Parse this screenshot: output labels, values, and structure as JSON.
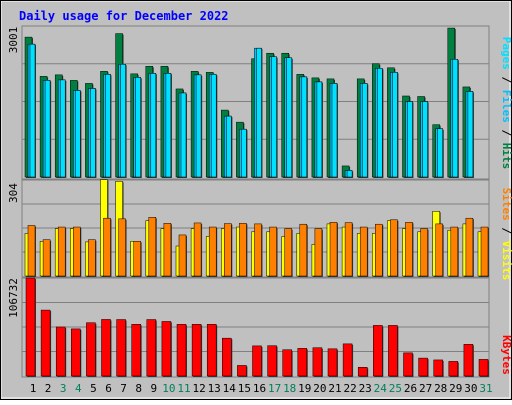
{
  "title": "Daily usage for December 2022",
  "colors": {
    "title": "#0000ff",
    "frame": "#c0c0c0",
    "plot_bg": "#c0c0c0",
    "hits": "#008040",
    "files": "#00c0ff",
    "pages": "#00e0ff",
    "visits": "#ffff00",
    "sites": "#ff8000",
    "kbytes": "#ff0000",
    "weekend_day": "#00805c",
    "weekday_day": "#000000"
  },
  "chart_data": [
    {
      "type": "bar",
      "name": "hits-files-pages",
      "ymax_label": "3001",
      "ylim": [
        0,
        3001
      ],
      "legend": [
        "Pages",
        "Files",
        "Hits"
      ],
      "x": [
        1,
        2,
        3,
        4,
        5,
        6,
        7,
        8,
        9,
        10,
        11,
        12,
        13,
        14,
        15,
        16,
        17,
        18,
        19,
        20,
        21,
        22,
        23,
        24,
        25,
        26,
        27,
        28,
        29,
        30,
        31
      ],
      "series": [
        {
          "name": "Hits",
          "values": [
            2780,
            2000,
            2030,
            1920,
            1860,
            2100,
            2850,
            2050,
            2200,
            2200,
            1750,
            2100,
            2080,
            1330,
            1090,
            2350,
            2460,
            2460,
            2040,
            1970,
            1950,
            220,
            1950,
            2250,
            2170,
            1610,
            1600,
            1040,
            2960,
            1790,
            null
          ]
        },
        {
          "name": "Files",
          "values": [
            2640,
            1920,
            1930,
            1720,
            1760,
            2040,
            2240,
            1980,
            2060,
            2060,
            1670,
            2030,
            2040,
            1210,
            950,
            2560,
            2390,
            2370,
            1990,
            1890,
            1860,
            130,
            1860,
            2160,
            2080,
            1500,
            1500,
            960,
            2340,
            1700,
            null
          ]
        },
        {
          "name": "Pages",
          "values": [
            2640,
            1920,
            1930,
            1720,
            1760,
            2040,
            2240,
            1980,
            2060,
            2060,
            1670,
            2030,
            2040,
            1210,
            950,
            2560,
            2390,
            2370,
            1990,
            1890,
            1860,
            130,
            1860,
            2160,
            2080,
            1500,
            1500,
            960,
            2340,
            1700,
            null
          ]
        }
      ]
    },
    {
      "type": "bar",
      "name": "visits-sites",
      "ymax_label": "304",
      "ylim": [
        0,
        304
      ],
      "legend": [
        "Sites",
        "Visits"
      ],
      "x": [
        1,
        2,
        3,
        4,
        5,
        6,
        7,
        8,
        9,
        10,
        11,
        12,
        13,
        14,
        15,
        16,
        17,
        18,
        19,
        20,
        21,
        22,
        23,
        24,
        25,
        26,
        27,
        28,
        29,
        30,
        31
      ],
      "series": [
        {
          "name": "Visits",
          "values": [
            135,
            110,
            150,
            150,
            108,
            305,
            300,
            110,
            175,
            150,
            95,
            150,
            125,
            150,
            155,
            140,
            140,
            125,
            135,
            100,
            165,
            155,
            135,
            135,
            175,
            150,
            140,
            205,
            145,
            165,
            140
          ]
        },
        {
          "name": "Sites",
          "values": [
            160,
            115,
            155,
            155,
            115,
            183,
            181,
            110,
            186,
            167,
            130,
            168,
            155,
            166,
            167,
            165,
            155,
            150,
            164,
            150,
            170,
            169,
            155,
            164,
            178,
            170,
            150,
            165,
            155,
            183,
            155
          ]
        }
      ]
    },
    {
      "type": "bar",
      "name": "kbytes",
      "ymax_label": "106732",
      "ylim": [
        0,
        106732
      ],
      "legend": [
        "KBytes"
      ],
      "x": [
        1,
        2,
        3,
        4,
        5,
        6,
        7,
        8,
        9,
        10,
        11,
        12,
        13,
        14,
        15,
        16,
        17,
        18,
        19,
        20,
        21,
        22,
        23,
        24,
        25,
        26,
        27,
        28,
        29,
        30,
        31
      ],
      "series": [
        {
          "name": "KBytes",
          "values": [
            106732,
            71800,
            53400,
            51300,
            58000,
            61600,
            61500,
            56300,
            61500,
            59400,
            56300,
            56300,
            56300,
            41200,
            11500,
            32800,
            33000,
            28600,
            30100,
            30800,
            29600,
            35000,
            9500,
            55100,
            55100,
            25200,
            19500,
            17500,
            15900,
            34500,
            18100
          ]
        }
      ]
    }
  ]
}
